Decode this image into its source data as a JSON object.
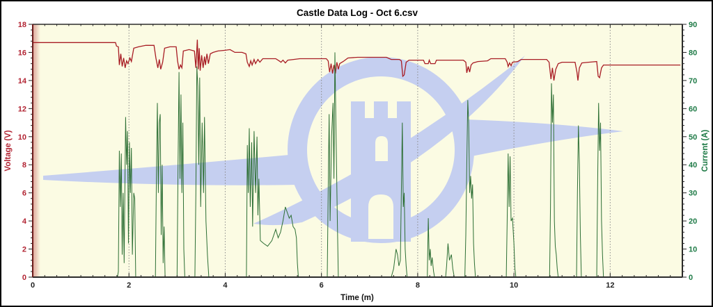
{
  "chart_data": {
    "type": "line",
    "title": "Castle Data Log - Oct 6.csv",
    "xlabel": "Time (m)",
    "x_axis": {
      "min": 0,
      "max": 13.5,
      "major_step": 2,
      "minor_step": 0.25,
      "tick_labels": [
        "0",
        "2",
        "4",
        "6",
        "8",
        "10",
        "12"
      ],
      "tick_values": [
        0,
        2,
        4,
        6,
        8,
        10,
        12
      ]
    },
    "y_left": {
      "label": "Voltage (V)",
      "min": 0,
      "max": 18,
      "major_step": 2,
      "minor_step": 0.4,
      "tick_labels": [
        "0",
        "2",
        "4",
        "6",
        "8",
        "10",
        "12",
        "14",
        "16",
        "18"
      ],
      "tick_values": [
        0,
        2,
        4,
        6,
        8,
        10,
        12,
        14,
        16,
        18
      ],
      "label_color": "#b22433"
    },
    "y_right": {
      "label": "Current (A)",
      "min": 0,
      "max": 90,
      "major_step": 10,
      "minor_step": 2,
      "tick_labels": [
        "0",
        "10",
        "20",
        "30",
        "40",
        "50",
        "60",
        "70",
        "80",
        "90"
      ],
      "tick_values": [
        0,
        10,
        20,
        30,
        40,
        50,
        60,
        70,
        80,
        90
      ],
      "label_color": "#1e7a46"
    },
    "grid": {
      "vertical_dotted_at": [
        2,
        4,
        6,
        8,
        10,
        12
      ],
      "color": "#8a8a8a",
      "horizontal": false
    },
    "legend": {
      "visible": false
    },
    "colors": {
      "plot_bg": "#fbfbe3",
      "watermark": "#c5cff0",
      "left_spine": "#6b1a1a",
      "spine": "#2a2a2a",
      "x_tick_label": "#222222",
      "xlabel_color": "#111111"
    },
    "series": [
      {
        "name": "Voltage",
        "axis": "left",
        "color": "#a81c24",
        "width": 1.3,
        "points": [
          [
            0,
            16.7
          ],
          [
            1.72,
            16.7
          ],
          [
            1.74,
            16.45
          ],
          [
            1.78,
            16.4
          ],
          [
            1.8,
            15.1
          ],
          [
            1.83,
            15.9
          ],
          [
            1.86,
            15.0
          ],
          [
            1.89,
            15.6
          ],
          [
            1.92,
            14.9
          ],
          [
            1.95,
            15.4
          ],
          [
            1.98,
            15.2
          ],
          [
            2.02,
            15.6
          ],
          [
            2.05,
            15.35
          ],
          [
            2.1,
            16.3
          ],
          [
            2.2,
            16.4
          ],
          [
            2.35,
            16.5
          ],
          [
            2.52,
            16.5
          ],
          [
            2.56,
            15.6
          ],
          [
            2.6,
            14.9
          ],
          [
            2.63,
            15.5
          ],
          [
            2.66,
            14.8
          ],
          [
            2.7,
            15.3
          ],
          [
            2.74,
            16.3
          ],
          [
            2.85,
            16.4
          ],
          [
            2.98,
            16.4
          ],
          [
            3.01,
            15.4
          ],
          [
            3.04,
            14.8
          ],
          [
            3.07,
            15.1
          ],
          [
            3.1,
            14.9
          ],
          [
            3.13,
            16.1
          ],
          [
            3.25,
            16.2
          ],
          [
            3.36,
            16.1
          ],
          [
            3.39,
            14.9
          ],
          [
            3.42,
            16.9
          ],
          [
            3.44,
            14.8
          ],
          [
            3.46,
            16.3
          ],
          [
            3.48,
            14.7
          ],
          [
            3.51,
            15.8
          ],
          [
            3.54,
            14.9
          ],
          [
            3.57,
            15.7
          ],
          [
            3.59,
            15.1
          ],
          [
            3.62,
            15.9
          ],
          [
            3.65,
            15.2
          ],
          [
            3.69,
            15.9
          ],
          [
            3.75,
            16.0
          ],
          [
            3.85,
            16.1
          ],
          [
            4.0,
            16.15
          ],
          [
            4.1,
            16.2
          ],
          [
            4.2,
            16.0
          ],
          [
            4.35,
            16.0
          ],
          [
            4.43,
            15.9
          ],
          [
            4.46,
            15.3
          ],
          [
            4.5,
            15.0
          ],
          [
            4.53,
            15.4
          ],
          [
            4.56,
            15.1
          ],
          [
            4.6,
            15.5
          ],
          [
            4.63,
            15.2
          ],
          [
            4.68,
            15.5
          ],
          [
            4.72,
            15.3
          ],
          [
            4.78,
            15.55
          ],
          [
            5.05,
            15.55
          ],
          [
            5.12,
            15.4
          ],
          [
            5.16,
            15.3
          ],
          [
            5.2,
            15.45
          ],
          [
            5.25,
            15.25
          ],
          [
            5.3,
            15.45
          ],
          [
            5.42,
            15.5
          ],
          [
            5.55,
            15.55
          ],
          [
            6.1,
            15.55
          ],
          [
            6.14,
            15.4
          ],
          [
            6.17,
            14.6
          ],
          [
            6.2,
            15.2
          ],
          [
            6.23,
            14.5
          ],
          [
            6.26,
            15.1
          ],
          [
            6.29,
            14.5
          ],
          [
            6.32,
            15.3
          ],
          [
            6.35,
            14.8
          ],
          [
            6.38,
            15.2
          ],
          [
            6.45,
            15.35
          ],
          [
            6.55,
            15.6
          ],
          [
            6.75,
            15.65
          ],
          [
            7.35,
            15.65
          ],
          [
            7.45,
            15.5
          ],
          [
            7.62,
            15.5
          ],
          [
            7.66,
            15.4
          ],
          [
            7.69,
            14.3
          ],
          [
            7.72,
            14.4
          ],
          [
            7.76,
            15.3
          ],
          [
            7.82,
            15.45
          ],
          [
            8.12,
            15.45
          ],
          [
            8.15,
            15.2
          ],
          [
            8.22,
            15.2
          ],
          [
            8.24,
            15.45
          ],
          [
            8.27,
            15.2
          ],
          [
            8.36,
            15.2
          ],
          [
            8.39,
            15.45
          ],
          [
            8.95,
            15.45
          ],
          [
            9.0,
            15.3
          ],
          [
            9.02,
            14.55
          ],
          [
            9.05,
            15.0
          ],
          [
            9.08,
            14.6
          ],
          [
            9.11,
            15.1
          ],
          [
            9.15,
            15.25
          ],
          [
            9.25,
            15.35
          ],
          [
            9.45,
            15.4
          ],
          [
            9.52,
            15.55
          ],
          [
            9.82,
            15.55
          ],
          [
            9.86,
            15.3
          ],
          [
            9.88,
            15.0
          ],
          [
            9.91,
            15.25
          ],
          [
            9.94,
            15.05
          ],
          [
            9.97,
            15.3
          ],
          [
            10.08,
            15.35
          ],
          [
            10.15,
            15.5
          ],
          [
            10.68,
            15.5
          ],
          [
            10.73,
            15.3
          ],
          [
            10.77,
            14.1
          ],
          [
            10.8,
            14.9
          ],
          [
            10.83,
            14.0
          ],
          [
            10.87,
            14.8
          ],
          [
            10.92,
            15.2
          ],
          [
            11.0,
            15.3
          ],
          [
            11.27,
            15.3
          ],
          [
            11.31,
            14.6
          ],
          [
            11.33,
            14.0
          ],
          [
            11.36,
            14.9
          ],
          [
            11.41,
            15.25
          ],
          [
            11.55,
            15.3
          ],
          [
            11.72,
            15.35
          ],
          [
            11.75,
            14.3
          ],
          [
            11.78,
            14.2
          ],
          [
            11.82,
            14.9
          ],
          [
            11.86,
            15.1
          ],
          [
            12.0,
            15.1
          ],
          [
            13.46,
            15.1
          ]
        ]
      },
      {
        "name": "Current",
        "axis": "right",
        "color": "#2d6f34",
        "width": 1,
        "points": [
          [
            0,
            0
          ],
          [
            1.76,
            0
          ],
          [
            1.78,
            2
          ],
          [
            1.8,
            45
          ],
          [
            1.82,
            25
          ],
          [
            1.84,
            44
          ],
          [
            1.86,
            8
          ],
          [
            1.88,
            30
          ],
          [
            1.9,
            5
          ],
          [
            1.93,
            57
          ],
          [
            1.95,
            40
          ],
          [
            1.97,
            52
          ],
          [
            1.99,
            12
          ],
          [
            2.01,
            48
          ],
          [
            2.03,
            30
          ],
          [
            2.05,
            46
          ],
          [
            2.07,
            8
          ],
          [
            2.1,
            30
          ],
          [
            2.12,
            28
          ],
          [
            2.14,
            0
          ],
          [
            2.55,
            0
          ],
          [
            2.57,
            35
          ],
          [
            2.59,
            62
          ],
          [
            2.61,
            30
          ],
          [
            2.63,
            55
          ],
          [
            2.65,
            58
          ],
          [
            2.67,
            15
          ],
          [
            2.69,
            40
          ],
          [
            2.71,
            5
          ],
          [
            2.73,
            18
          ],
          [
            2.75,
            0
          ],
          [
            3.0,
            0
          ],
          [
            3.02,
            40
          ],
          [
            3.04,
            73
          ],
          [
            3.06,
            35
          ],
          [
            3.08,
            65
          ],
          [
            3.1,
            30
          ],
          [
            3.12,
            55
          ],
          [
            3.14,
            10
          ],
          [
            3.16,
            0
          ],
          [
            3.37,
            0
          ],
          [
            3.39,
            30
          ],
          [
            3.41,
            75
          ],
          [
            3.43,
            68
          ],
          [
            3.45,
            40
          ],
          [
            3.47,
            71
          ],
          [
            3.49,
            25
          ],
          [
            3.52,
            55
          ],
          [
            3.55,
            30
          ],
          [
            3.57,
            57
          ],
          [
            3.6,
            20
          ],
          [
            3.63,
            8
          ],
          [
            3.66,
            0
          ],
          [
            4.44,
            0
          ],
          [
            4.46,
            47
          ],
          [
            4.48,
            30
          ],
          [
            4.5,
            53
          ],
          [
            4.52,
            25
          ],
          [
            4.55,
            48
          ],
          [
            4.57,
            18
          ],
          [
            4.6,
            52
          ],
          [
            4.63,
            30
          ],
          [
            4.66,
            50
          ],
          [
            4.68,
            22
          ],
          [
            4.7,
            35
          ],
          [
            4.73,
            13
          ],
          [
            4.8,
            12
          ],
          [
            4.88,
            11
          ],
          [
            4.97,
            13
          ],
          [
            5.05,
            17
          ],
          [
            5.1,
            14
          ],
          [
            5.15,
            16
          ],
          [
            5.2,
            20
          ],
          [
            5.25,
            25
          ],
          [
            5.29,
            23
          ],
          [
            5.33,
            21
          ],
          [
            5.37,
            22
          ],
          [
            5.41,
            18
          ],
          [
            5.45,
            17
          ],
          [
            5.48,
            14
          ],
          [
            5.5,
            5
          ],
          [
            5.52,
            0
          ],
          [
            6.12,
            0
          ],
          [
            6.14,
            30
          ],
          [
            6.16,
            58
          ],
          [
            6.18,
            20
          ],
          [
            6.21,
            50
          ],
          [
            6.24,
            62
          ],
          [
            6.26,
            35
          ],
          [
            6.28,
            80
          ],
          [
            6.3,
            55
          ],
          [
            6.33,
            20
          ],
          [
            6.35,
            0
          ],
          [
            7.45,
            0
          ],
          [
            7.5,
            3
          ],
          [
            7.55,
            10
          ],
          [
            7.58,
            8
          ],
          [
            7.61,
            4
          ],
          [
            7.64,
            6
          ],
          [
            7.66,
            30
          ],
          [
            7.68,
            55
          ],
          [
            7.7,
            25
          ],
          [
            7.72,
            30
          ],
          [
            7.74,
            10
          ],
          [
            7.76,
            4
          ],
          [
            7.78,
            0
          ],
          [
            8.2,
            0
          ],
          [
            8.22,
            21
          ],
          [
            8.24,
            6
          ],
          [
            8.26,
            10
          ],
          [
            8.28,
            4
          ],
          [
            8.3,
            7
          ],
          [
            8.33,
            2
          ],
          [
            8.35,
            0
          ],
          [
            8.58,
            0
          ],
          [
            8.6,
            4
          ],
          [
            8.63,
            12
          ],
          [
            8.66,
            6
          ],
          [
            8.7,
            8
          ],
          [
            8.73,
            3
          ],
          [
            8.76,
            0
          ],
          [
            8.98,
            0
          ],
          [
            9.0,
            15
          ],
          [
            9.02,
            40
          ],
          [
            9.04,
            63
          ],
          [
            9.06,
            55
          ],
          [
            9.08,
            30
          ],
          [
            9.1,
            36
          ],
          [
            9.12,
            28
          ],
          [
            9.14,
            33
          ],
          [
            9.16,
            12
          ],
          [
            9.18,
            5
          ],
          [
            9.2,
            0
          ],
          [
            9.84,
            0
          ],
          [
            9.86,
            20
          ],
          [
            9.88,
            44
          ],
          [
            9.9,
            25
          ],
          [
            9.92,
            43
          ],
          [
            9.94,
            20
          ],
          [
            9.97,
            21
          ],
          [
            10.0,
            12
          ],
          [
            10.02,
            3
          ],
          [
            10.04,
            0
          ],
          [
            10.74,
            0
          ],
          [
            10.76,
            25
          ],
          [
            10.78,
            69
          ],
          [
            10.8,
            55
          ],
          [
            10.82,
            65
          ],
          [
            10.84,
            20
          ],
          [
            10.86,
            11
          ],
          [
            10.88,
            8
          ],
          [
            10.9,
            3
          ],
          [
            10.92,
            0
          ],
          [
            11.3,
            0
          ],
          [
            11.32,
            30
          ],
          [
            11.34,
            54
          ],
          [
            11.36,
            40
          ],
          [
            11.38,
            15
          ],
          [
            11.4,
            0
          ],
          [
            11.72,
            0
          ],
          [
            11.74,
            35
          ],
          [
            11.76,
            62
          ],
          [
            11.78,
            45
          ],
          [
            11.8,
            55
          ],
          [
            11.82,
            20
          ],
          [
            11.84,
            8
          ],
          [
            11.86,
            0
          ],
          [
            13.46,
            0
          ]
        ]
      }
    ]
  }
}
